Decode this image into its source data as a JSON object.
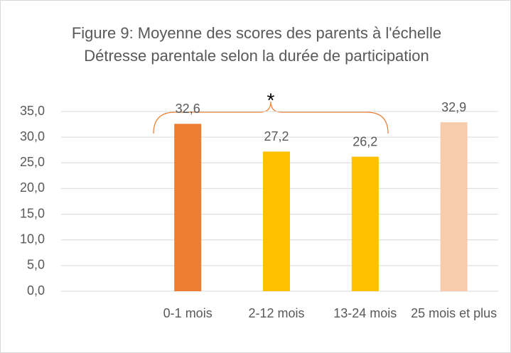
{
  "chart_data": {
    "type": "bar",
    "title": "Figure 9: Moyenne des scores des parents à l'échelle Détresse parentale selon la durée de participation",
    "categories": [
      null,
      "0-1 mois",
      "2-12 mois",
      "13-24 mois",
      "25 mois et plus"
    ],
    "values": [
      null,
      32.6,
      27.2,
      26.2,
      32.9
    ],
    "value_labels": [
      null,
      "32,6",
      "27,2",
      "26,2",
      "32,9"
    ],
    "colors": [
      null,
      "#ed7d31",
      "#ffc000",
      "#ffc000",
      "#f8cbad"
    ],
    "annotation": "*",
    "ylim": [
      0,
      35
    ],
    "yticks": [
      {
        "value": 0,
        "label": "0,0"
      },
      {
        "value": 5,
        "label": "5,0"
      },
      {
        "value": 10,
        "label": "10,0"
      },
      {
        "value": 15,
        "label": "15,0"
      },
      {
        "value": 20,
        "label": "20,0"
      },
      {
        "value": 25,
        "label": "25,0"
      },
      {
        "value": 30,
        "label": "30,0"
      },
      {
        "value": 35,
        "label": "35,0"
      }
    ],
    "grid": true
  }
}
